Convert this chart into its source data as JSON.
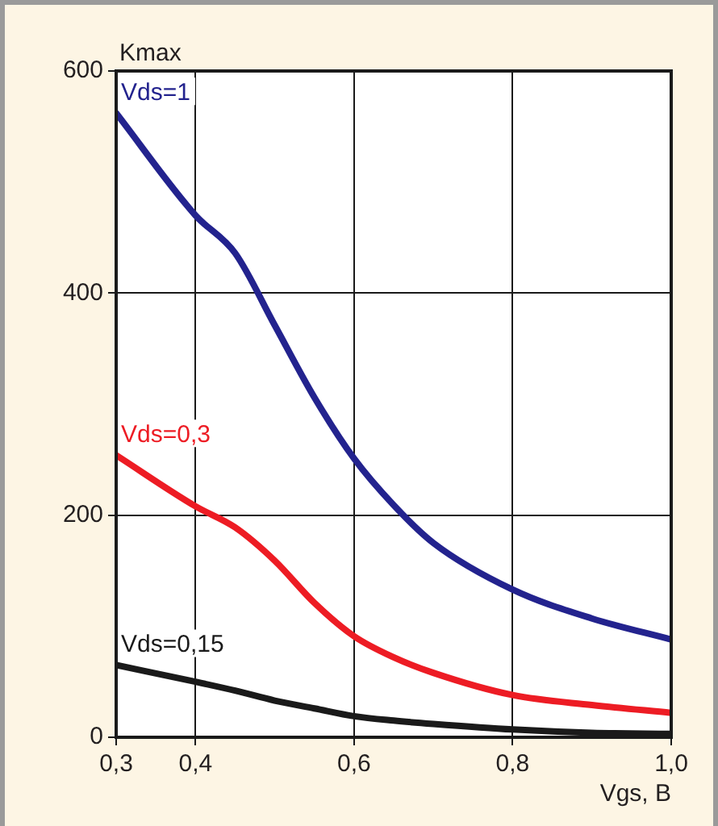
{
  "chart_data": {
    "type": "line",
    "xlabel": "Vgs, B",
    "ylabel": "Kmax",
    "x": [
      0.3,
      0.4,
      0.45,
      0.5,
      0.55,
      0.6,
      0.65,
      0.7,
      0.8,
      0.9,
      1.0
    ],
    "series": [
      {
        "name": "Vds=1",
        "color": "#23238e",
        "values": [
          562,
          470,
          436,
          371,
          306,
          251,
          209,
          175,
          133,
          107,
          88
        ]
      },
      {
        "name": "Vds=0,3",
        "color": "#ed1c24",
        "values": [
          254,
          208,
          189,
          159,
          121,
          91,
          72,
          58,
          38,
          29,
          22
        ]
      },
      {
        "name": "Vds=0,15",
        "color": "#1a1a1a",
        "values": [
          65,
          50,
          42,
          33,
          26,
          19,
          15,
          12,
          7,
          4,
          3
        ]
      }
    ],
    "xlim": [
      0.3,
      1.0
    ],
    "xticks": [
      {
        "value": 0.3,
        "label": "0,3"
      },
      {
        "value": 0.4,
        "label": "0,4"
      },
      {
        "value": 0.6,
        "label": "0,6"
      },
      {
        "value": 0.8,
        "label": "0,8"
      },
      {
        "value": 1.0,
        "label": "1,0"
      }
    ],
    "ylim": [
      0,
      600
    ],
    "yticks": [
      0,
      200,
      400,
      600
    ],
    "grid": true,
    "legend": false,
    "marker": "none",
    "line_style": "solid"
  }
}
